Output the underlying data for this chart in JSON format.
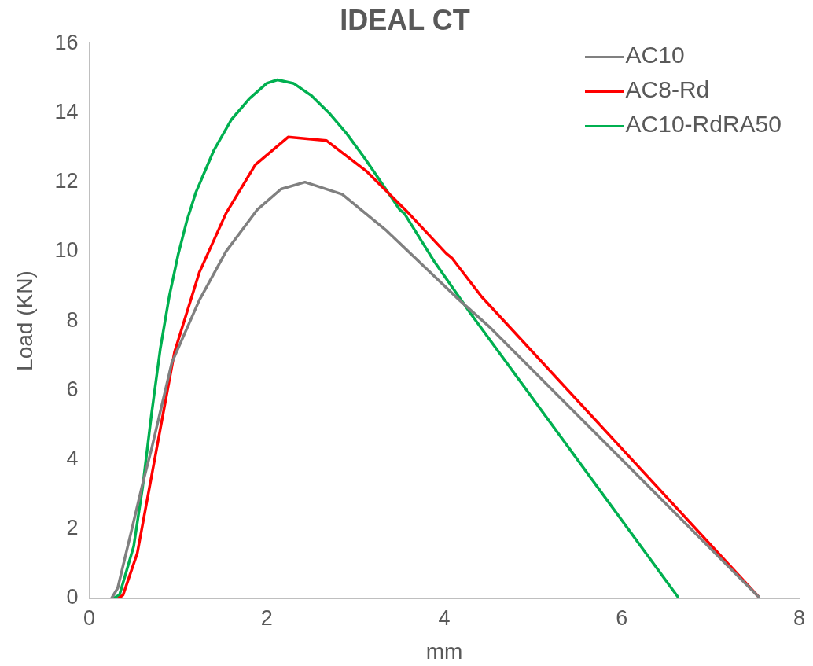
{
  "chart_data": {
    "type": "line",
    "title": "IDEAL CT",
    "xlabel": "mm",
    "ylabel": "Load (KN)",
    "xlim": [
      0,
      8
    ],
    "xticks": [
      0,
      2,
      4,
      6,
      8
    ],
    "ylim": [
      0,
      16
    ],
    "yticks": [
      0,
      2,
      4,
      6,
      8,
      10,
      12,
      14,
      16
    ],
    "grid": false,
    "legend": "top right",
    "marker": "none",
    "line_style": "solid",
    "series": [
      {
        "name": "AC10",
        "color": "#808080",
        "x": [
          0.25,
          0.32,
          0.47,
          0.6,
          0.7,
          0.93,
          1.24,
          1.54,
          1.89,
          2.16,
          2.43,
          2.85,
          3.35,
          3.78,
          4.17,
          4.52,
          7.54
        ],
        "values": [
          0,
          0.3,
          1.9,
          3.3,
          4.3,
          6.8,
          8.6,
          10.0,
          11.2,
          11.8,
          12.0,
          11.65,
          10.6,
          9.55,
          8.6,
          7.8,
          0.05
        ]
      },
      {
        "name": "AC8-Rd",
        "color": "#ff0000",
        "x": [
          0.33,
          0.38,
          0.54,
          0.96,
          1.24,
          1.54,
          1.87,
          2.24,
          2.67,
          3.13,
          3.6,
          4.02,
          4.09,
          4.42,
          7.54
        ],
        "values": [
          0,
          0.1,
          1.3,
          7.1,
          9.4,
          11.1,
          12.5,
          13.3,
          13.2,
          12.3,
          11.1,
          9.95,
          9.8,
          8.7,
          0.05
        ]
      },
      {
        "name": "AC10-RdRA50",
        "color": "#00b050",
        "x": [
          0.27,
          0.34,
          0.5,
          0.6,
          0.7,
          0.8,
          0.9,
          1.0,
          1.1,
          1.2,
          1.4,
          1.6,
          1.8,
          2.0,
          2.12,
          2.3,
          2.5,
          2.7,
          2.9,
          3.1,
          3.3,
          3.5,
          3.55,
          3.89,
          4.3,
          6.63
        ],
        "values": [
          0,
          0.1,
          1.5,
          3.2,
          5.3,
          7.2,
          8.7,
          9.9,
          10.9,
          11.7,
          12.9,
          13.8,
          14.4,
          14.85,
          14.95,
          14.85,
          14.5,
          14.0,
          13.4,
          12.7,
          11.95,
          11.2,
          11.1,
          9.7,
          8.2,
          0.05
        ]
      }
    ]
  }
}
